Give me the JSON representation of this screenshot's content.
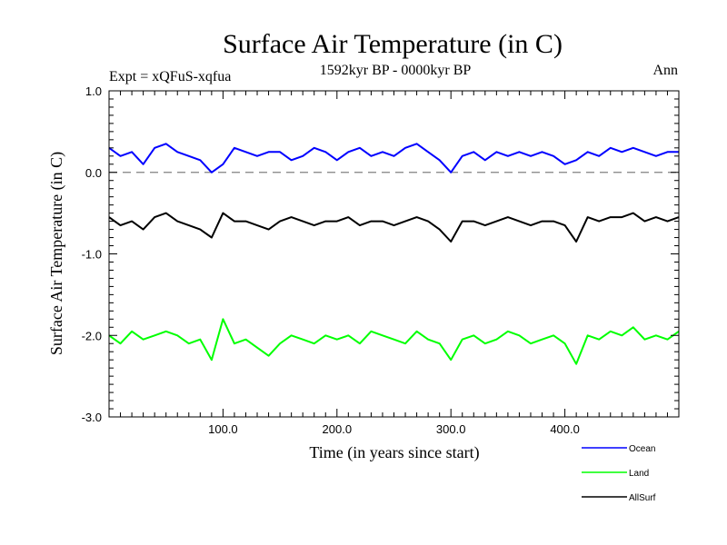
{
  "chart_data": {
    "type": "line",
    "title": "Surface Air Temperature (in C)",
    "subtitle_left": "Expt = xQFuS-xqfua",
    "subtitle_center": "1592kyr BP - 0000kyr BP",
    "subtitle_right": "Ann",
    "xlabel": "Time (in years since start)",
    "ylabel": "Surface Air Temperature (in C)",
    "xlim": [
      0,
      500
    ],
    "ylim": [
      -3.0,
      1.0
    ],
    "x_ticks": [
      100,
      200,
      300,
      400
    ],
    "x_tick_labels": [
      "100.0",
      "200.0",
      "300.0",
      "400.0"
    ],
    "y_ticks": [
      1.0,
      0.0,
      -1.0,
      -2.0,
      -3.0
    ],
    "y_tick_labels": [
      "1.0",
      "0.0",
      "-1.0",
      "-2.0",
      "-3.0"
    ],
    "reference_line": {
      "y": 0.0,
      "style": "dashed",
      "color": "#808080"
    },
    "grid": false,
    "series": [
      {
        "name": "Ocean",
        "color": "#0000ff",
        "x": [
          0,
          10,
          20,
          30,
          40,
          50,
          60,
          70,
          80,
          90,
          100,
          110,
          120,
          130,
          140,
          150,
          160,
          170,
          180,
          190,
          200,
          210,
          220,
          230,
          240,
          250,
          260,
          270,
          280,
          290,
          300,
          310,
          320,
          330,
          340,
          350,
          360,
          370,
          380,
          390,
          400,
          410,
          420,
          430,
          440,
          450,
          460,
          470,
          480,
          490,
          500
        ],
        "values": [
          0.3,
          0.2,
          0.25,
          0.1,
          0.3,
          0.35,
          0.25,
          0.2,
          0.15,
          0.0,
          0.1,
          0.3,
          0.25,
          0.2,
          0.25,
          0.25,
          0.15,
          0.2,
          0.3,
          0.25,
          0.15,
          0.25,
          0.3,
          0.2,
          0.25,
          0.2,
          0.3,
          0.35,
          0.25,
          0.15,
          0.0,
          0.2,
          0.25,
          0.15,
          0.25,
          0.2,
          0.25,
          0.2,
          0.25,
          0.2,
          0.1,
          0.15,
          0.25,
          0.2,
          0.3,
          0.25,
          0.3,
          0.25,
          0.2,
          0.25,
          0.25
        ]
      },
      {
        "name": "Land",
        "color": "#00ff00",
        "x": [
          0,
          10,
          20,
          30,
          40,
          50,
          60,
          70,
          80,
          90,
          100,
          110,
          120,
          130,
          140,
          150,
          160,
          170,
          180,
          190,
          200,
          210,
          220,
          230,
          240,
          250,
          260,
          270,
          280,
          290,
          300,
          310,
          320,
          330,
          340,
          350,
          360,
          370,
          380,
          390,
          400,
          410,
          420,
          430,
          440,
          450,
          460,
          470,
          480,
          490,
          500
        ],
        "values": [
          -2.0,
          -2.1,
          -1.95,
          -2.05,
          -2.0,
          -1.95,
          -2.0,
          -2.1,
          -2.05,
          -2.3,
          -1.8,
          -2.1,
          -2.05,
          -2.15,
          -2.25,
          -2.1,
          -2.0,
          -2.05,
          -2.1,
          -2.0,
          -2.05,
          -2.0,
          -2.1,
          -1.95,
          -2.0,
          -2.05,
          -2.1,
          -1.95,
          -2.05,
          -2.1,
          -2.3,
          -2.05,
          -2.0,
          -2.1,
          -2.05,
          -1.95,
          -2.0,
          -2.1,
          -2.05,
          -2.0,
          -2.1,
          -2.35,
          -2.0,
          -2.05,
          -1.95,
          -2.0,
          -1.9,
          -2.05,
          -2.0,
          -2.05,
          -1.95
        ]
      },
      {
        "name": "AllSurf",
        "color": "#000000",
        "x": [
          0,
          10,
          20,
          30,
          40,
          50,
          60,
          70,
          80,
          90,
          100,
          110,
          120,
          130,
          140,
          150,
          160,
          170,
          180,
          190,
          200,
          210,
          220,
          230,
          240,
          250,
          260,
          270,
          280,
          290,
          300,
          310,
          320,
          330,
          340,
          350,
          360,
          370,
          380,
          390,
          400,
          410,
          420,
          430,
          440,
          450,
          460,
          470,
          480,
          490,
          500
        ],
        "values": [
          -0.55,
          -0.65,
          -0.6,
          -0.7,
          -0.55,
          -0.5,
          -0.6,
          -0.65,
          -0.7,
          -0.8,
          -0.5,
          -0.6,
          -0.6,
          -0.65,
          -0.7,
          -0.6,
          -0.55,
          -0.6,
          -0.65,
          -0.6,
          -0.6,
          -0.55,
          -0.65,
          -0.6,
          -0.6,
          -0.65,
          -0.6,
          -0.55,
          -0.6,
          -0.7,
          -0.85,
          -0.6,
          -0.6,
          -0.65,
          -0.6,
          -0.55,
          -0.6,
          -0.65,
          -0.6,
          -0.6,
          -0.65,
          -0.85,
          -0.55,
          -0.6,
          -0.55,
          -0.55,
          -0.5,
          -0.6,
          -0.55,
          -0.6,
          -0.55
        ]
      }
    ],
    "legend": {
      "placement": "bottom-right",
      "entries": [
        {
          "label": "Ocean",
          "color": "#0000ff"
        },
        {
          "label": "Land",
          "color": "#00ff00"
        },
        {
          "label": "AllSurf",
          "color": "#000000"
        }
      ]
    }
  }
}
